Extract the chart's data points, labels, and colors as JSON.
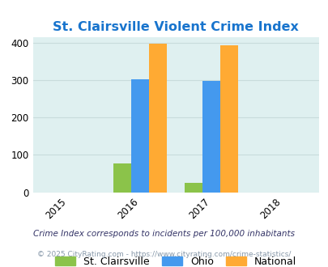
{
  "title": "St. Clairsville Violent Crime Index",
  "title_color": "#1874CD",
  "years": [
    2015,
    2016,
    2017,
    2018
  ],
  "series": {
    "St. Clairsville": {
      "2016": 78,
      "2017": 25
    },
    "Ohio": {
      "2016": 302,
      "2017": 299
    },
    "National": {
      "2016": 398,
      "2017": 394
    }
  },
  "colors": {
    "St. Clairsville": "#8BC34A",
    "Ohio": "#4499EE",
    "National": "#FFAA33"
  },
  "bar_width": 0.25,
  "xlim": [
    2014.5,
    2018.5
  ],
  "ylim": [
    0,
    415
  ],
  "yticks": [
    0,
    100,
    200,
    300,
    400
  ],
  "bg_color": "#DFF0F0",
  "grid_color": "#C8DCDC",
  "footnote1": "Crime Index corresponds to incidents per 100,000 inhabitants",
  "footnote2": "© 2025 CityRating.com - https://www.cityrating.com/crime-statistics/",
  "footnote_color1": "#333366",
  "footnote_color2": "#8899AA"
}
